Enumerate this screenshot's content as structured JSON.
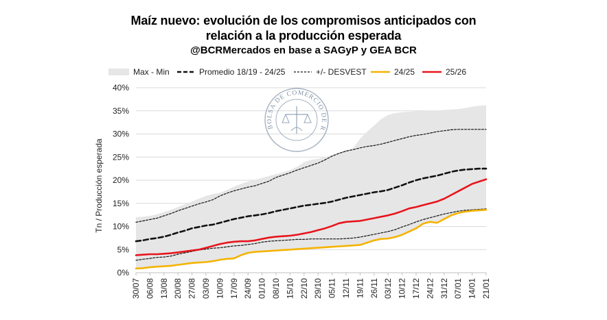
{
  "chart_data": {
    "type": "line",
    "title_line1": "Maíz nuevo: evolución de los compromisos anticipados con",
    "title_line2": "relación a la producción esperada",
    "subtitle": "@BCRMercados en base a SAGyP y GEA BCR",
    "ylabel": "Tn / Producción esperada",
    "xlabel": "",
    "ylim": [
      0,
      40
    ],
    "y_ticks": [
      0,
      5,
      10,
      15,
      20,
      25,
      30,
      35,
      40
    ],
    "y_tick_labels": [
      "0%",
      "5%",
      "10%",
      "15%",
      "20%",
      "25%",
      "30%",
      "35%",
      "40%"
    ],
    "x_tick_labels": [
      "30/07",
      "06/08",
      "13/08",
      "20/08",
      "27/08",
      "03/09",
      "10/09",
      "17/09",
      "24/09",
      "01/10",
      "08/10",
      "15/10",
      "22/10",
      "29/10",
      "05/11",
      "12/11",
      "19/11",
      "26/11",
      "03/12",
      "10/12",
      "17/12",
      "24/12",
      "31/12",
      "07/01",
      "14/01",
      "21/01"
    ],
    "grid": true,
    "legend_position": "top",
    "legend": [
      {
        "key": "range",
        "label": "Max - Min"
      },
      {
        "key": "avg",
        "label": "Promedio 18/19 - 24/25"
      },
      {
        "key": "std",
        "label": "+/- DESVEST"
      },
      {
        "key": "s2425",
        "label": "24/25"
      },
      {
        "key": "s2526",
        "label": "25/26"
      }
    ],
    "x_points_per_week": 2,
    "band": {
      "name": "Max - Min",
      "max": [
        12.0,
        12.1,
        12.3,
        12.6,
        13.1,
        13.6,
        14.2,
        14.8,
        15.4,
        16.0,
        16.6,
        17.0,
        17.3,
        17.9,
        18.6,
        19.2,
        19.7,
        20.1,
        20.5,
        20.9,
        21.3,
        21.7,
        22.2,
        22.9,
        23.9,
        24.4,
        24.6,
        25.0,
        25.5,
        26.0,
        26.5,
        26.9,
        29.0,
        30.5,
        31.8,
        33.2,
        34.1,
        34.5,
        34.7,
        34.8,
        34.9,
        35.0,
        35.0,
        35.1,
        35.2,
        35.3,
        35.4,
        35.6,
        35.9,
        36.1,
        36.2
      ],
      "min": [
        0.9,
        1.0,
        1.2,
        1.3,
        1.4,
        1.5,
        1.7,
        1.9,
        2.1,
        2.2,
        2.3,
        2.5,
        2.8,
        3.0,
        3.1,
        3.8,
        4.3,
        4.5,
        4.6,
        4.7,
        4.8,
        4.9,
        5.0,
        5.1,
        5.2,
        5.3,
        5.4,
        5.5,
        5.6,
        5.7,
        5.8,
        5.9,
        6.0,
        6.5,
        7.0,
        7.3,
        7.4,
        7.7,
        8.2,
        8.6,
        9.3,
        10.4,
        11.0,
        10.8,
        11.5,
        12.3,
        12.9,
        13.2,
        13.4,
        13.5,
        13.6
      ]
    },
    "series": [
      {
        "name": "Promedio 18/19 - 24/25",
        "key": "avg",
        "color": "#111111",
        "values": [
          6.8,
          7.0,
          7.3,
          7.5,
          7.8,
          8.2,
          8.7,
          9.1,
          9.6,
          9.9,
          10.2,
          10.4,
          10.8,
          11.2,
          11.6,
          11.9,
          12.2,
          12.4,
          12.6,
          12.9,
          13.3,
          13.6,
          13.9,
          14.2,
          14.5,
          14.7,
          14.9,
          15.1,
          15.4,
          15.8,
          16.2,
          16.5,
          16.8,
          17.1,
          17.4,
          17.6,
          17.9,
          18.4,
          18.9,
          19.5,
          20.0,
          20.4,
          20.7,
          21.0,
          21.4,
          21.8,
          22.1,
          22.3,
          22.4,
          22.5,
          22.5
        ]
      },
      {
        "name": "+/- DESVEST (superior)",
        "key": "std_upper",
        "color": "#111111",
        "values": [
          10.9,
          11.2,
          11.5,
          11.8,
          12.3,
          12.8,
          13.4,
          13.9,
          14.4,
          14.9,
          15.3,
          15.8,
          16.6,
          17.2,
          17.7,
          18.1,
          18.5,
          18.8,
          19.3,
          19.8,
          20.6,
          21.1,
          21.6,
          22.2,
          22.7,
          23.2,
          23.7,
          24.4,
          25.2,
          25.8,
          26.3,
          26.6,
          27.0,
          27.3,
          27.5,
          27.8,
          28.2,
          28.6,
          29.0,
          29.4,
          29.7,
          29.9,
          30.2,
          30.5,
          30.7,
          30.9,
          31.0,
          31.0,
          31.0,
          31.0,
          31.0
        ]
      },
      {
        "name": "+/- DESVEST (inferior)",
        "key": "std_lower",
        "color": "#111111",
        "values": [
          2.7,
          2.9,
          3.1,
          3.3,
          3.4,
          3.6,
          4.0,
          4.3,
          4.6,
          4.9,
          5.1,
          5.3,
          5.4,
          5.6,
          5.8,
          5.9,
          6.1,
          6.3,
          6.6,
          6.8,
          6.9,
          7.0,
          7.1,
          7.2,
          7.2,
          7.3,
          7.3,
          7.3,
          7.3,
          7.3,
          7.4,
          7.5,
          7.7,
          8.0,
          8.3,
          8.6,
          8.9,
          9.3,
          9.9,
          10.4,
          11.0,
          11.5,
          11.9,
          12.3,
          12.7,
          13.0,
          13.3,
          13.5,
          13.6,
          13.7,
          13.8
        ]
      },
      {
        "name": "24/25",
        "key": "s2425",
        "color": "#f5b300",
        "values": [
          0.9,
          1.0,
          1.2,
          1.3,
          1.4,
          1.5,
          1.7,
          1.9,
          2.1,
          2.2,
          2.3,
          2.5,
          2.8,
          3.0,
          3.1,
          3.8,
          4.3,
          4.5,
          4.6,
          4.7,
          4.8,
          4.9,
          5.0,
          5.1,
          5.2,
          5.3,
          5.4,
          5.5,
          5.6,
          5.7,
          5.8,
          5.9,
          6.0,
          6.5,
          7.0,
          7.3,
          7.4,
          7.7,
          8.2,
          8.9,
          9.6,
          10.6,
          11.0,
          10.8,
          11.6,
          12.4,
          12.9,
          13.2,
          13.4,
          13.5,
          13.6
        ]
      },
      {
        "name": "25/26",
        "key": "s2526",
        "color": "#e8141c",
        "values": [
          3.8,
          3.9,
          4.0,
          4.0,
          4.1,
          4.2,
          4.4,
          4.6,
          4.8,
          5.0,
          5.4,
          5.8,
          6.2,
          6.5,
          6.7,
          6.8,
          6.8,
          7.0,
          7.3,
          7.6,
          7.8,
          7.9,
          8.0,
          8.2,
          8.5,
          8.8,
          9.2,
          9.6,
          10.1,
          10.7,
          11.0,
          11.1,
          11.2,
          11.5,
          11.8,
          12.1,
          12.4,
          12.8,
          13.3,
          13.9,
          14.2,
          14.6,
          15.0,
          15.4,
          16.0,
          16.8,
          17.6,
          18.4,
          19.2,
          19.7,
          20.2
        ]
      }
    ],
    "watermark": {
      "text": "BOLSA DE COMERCIO DE ROSARIO"
    }
  }
}
